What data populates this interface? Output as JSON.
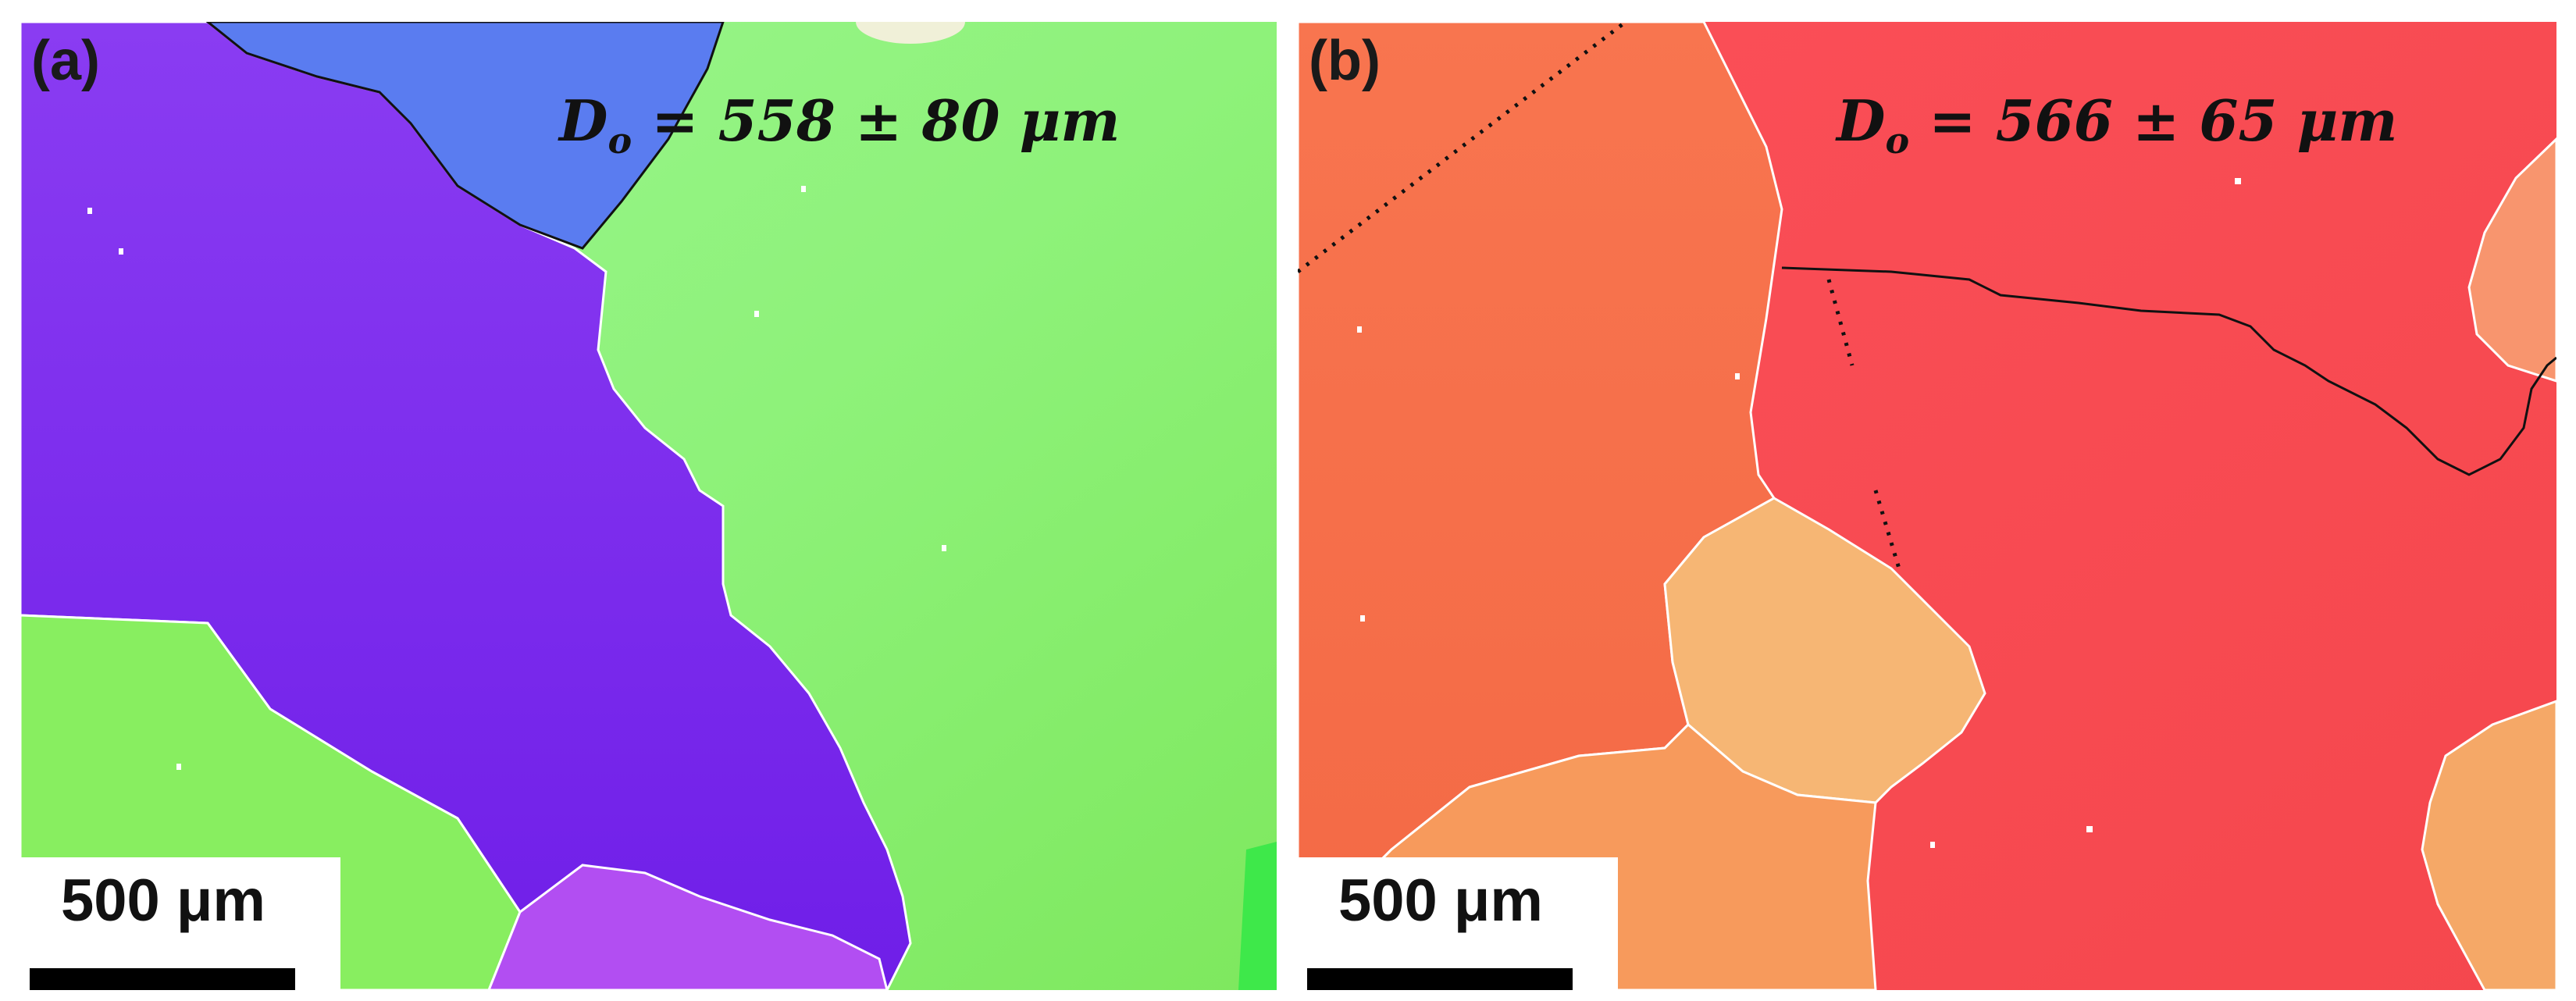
{
  "figure": {
    "panels": [
      {
        "label": "(a)",
        "formula": {
          "symbol": "D",
          "subscript": "o",
          "expression": " = 558 ± 80 μm"
        },
        "scale_bar": "500 μm"
      },
      {
        "label": "(b)",
        "formula": {
          "symbol": "D",
          "subscript": "o",
          "expression": " = 566 ± 65 μm"
        },
        "scale_bar": "500 μm"
      }
    ],
    "colors": {
      "purple_grain": "#7e2ff0",
      "green_grain": "#92f27a",
      "blue_grain": "#5a78f0",
      "magenta_grain": "#b04ef0",
      "red_grain": "#fa5055",
      "orange_grain": "#f97a50",
      "peach_grain": "#f5b070"
    }
  }
}
